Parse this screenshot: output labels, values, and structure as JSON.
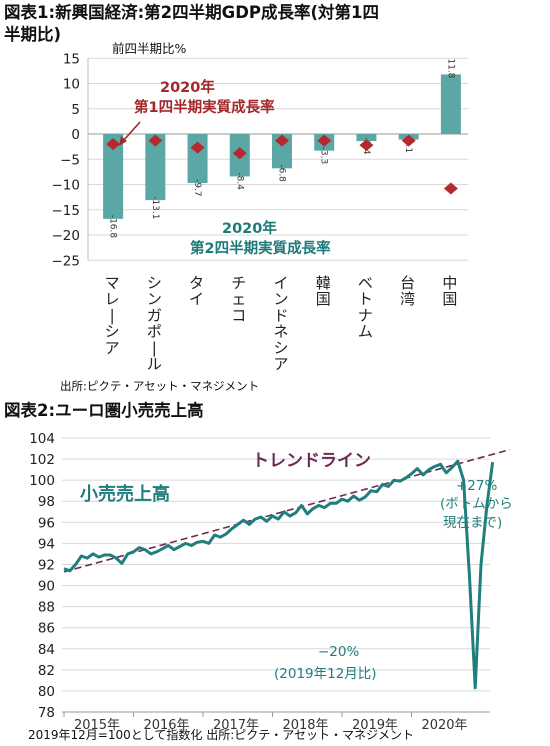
{
  "figure1": {
    "title_line1": "図表1:新興国経済:第2四半期GDP成長率(対第1四",
    "title_line2": "半期比)",
    "unit_label": "前四半期比%",
    "source": "出所:ピクテ・アセット・マネジメント",
    "colors": {
      "bar": "#5aa7a5",
      "diamond": "#b22a2e",
      "annot_red": "#a3282b",
      "annot_teal": "#1c7b7a"
    }
  },
  "figure2": {
    "title": "図表2:ユーロ圏小売売上高",
    "note": "2019年12月=100として指数化  出所:ピクテ・アセット・マネジメント",
    "colors": {
      "line": "#1f7f7d",
      "trend": "#6b2b55"
    }
  },
  "chart_data": [
    {
      "type": "bar",
      "categories": [
        "マレーシア",
        "シンガポール",
        "タイ",
        "チェコ",
        "インドネシア",
        "韓国",
        "ベトナム",
        "台湾",
        "中国"
      ],
      "series": [
        {
          "name": "2020年 第2四半期実質成長率",
          "values": [
            -16.8,
            -13.1,
            -9.7,
            -8.4,
            -6.8,
            -3.3,
            -1.4,
            -1.1,
            11.8
          ]
        },
        {
          "name": "2020年 第1四半期実質成長率",
          "values": [
            -2.0,
            -1.3,
            -2.7,
            -3.8,
            -1.3,
            -1.3,
            -2.2,
            -1.3,
            -10.8
          ]
        }
      ],
      "value_labels": [
        "-16.8",
        "-13.1",
        "-9.7",
        "-8.4",
        "-6.8",
        "-3.3",
        "-1.4",
        "-1.1",
        "11.8"
      ],
      "annotations": {
        "q1_line1": "2020年",
        "q1_line2": "第1四半期実質成長率",
        "q2_line1": "2020年",
        "q2_line2": "第2四半期実質成長率"
      },
      "ylim": [
        -25,
        15
      ],
      "yticks": [
        "15",
        "10",
        "5",
        "0",
        "−5",
        "−10",
        "−15",
        "−20",
        "−25"
      ],
      "ylabel": "前四半期比%",
      "grid": true
    },
    {
      "type": "line",
      "x_ticks": [
        "2015年",
        "2016年",
        "2017年",
        "2018年",
        "2019年",
        "2020年"
      ],
      "x_start": "2015-01",
      "x_end": "2020-07",
      "ylim": [
        78,
        104
      ],
      "yticks": [
        "104",
        "102",
        "100",
        "98",
        "96",
        "94",
        "92",
        "90",
        "88",
        "86",
        "84",
        "82",
        "80",
        "78"
      ],
      "series": [
        {
          "name": "小売売上高",
          "values": [
            91.6,
            91.4,
            92.0,
            92.8,
            92.6,
            93.0,
            92.7,
            92.9,
            92.9,
            92.6,
            92.1,
            93.0,
            93.2,
            93.6,
            93.4,
            93.0,
            93.2,
            93.5,
            93.8,
            93.4,
            93.7,
            94.0,
            93.8,
            94.1,
            94.2,
            94.0,
            94.8,
            94.6,
            94.9,
            95.4,
            95.8,
            96.2,
            95.8,
            96.3,
            96.5,
            96.1,
            96.6,
            96.3,
            97.0,
            96.6,
            96.9,
            97.6,
            96.8,
            97.3,
            97.6,
            97.4,
            97.8,
            97.8,
            98.2,
            98.0,
            98.5,
            98.1,
            98.4,
            99.0,
            98.9,
            99.6,
            99.4,
            100.0,
            99.9,
            100.2,
            100.6,
            101.1,
            100.5,
            101.0,
            101.3,
            101.5,
            100.7,
            101.2,
            101.8,
            100.0,
            91.0,
            80.3,
            92.0,
            97.5,
            101.7
          ]
        },
        {
          "name": "トレンドライン",
          "start": 91.3,
          "end": 102.9
        }
      ],
      "annotations": {
        "series_label": "小売売上高",
        "trend_label": "トレンドライン",
        "drop_pct": "−20%",
        "drop_note": "(2019年12月比)",
        "rebound_pct": "+27%",
        "rebound_note1": "(ボトムから",
        "rebound_note2": "現在まで)"
      },
      "grid": true
    }
  ]
}
